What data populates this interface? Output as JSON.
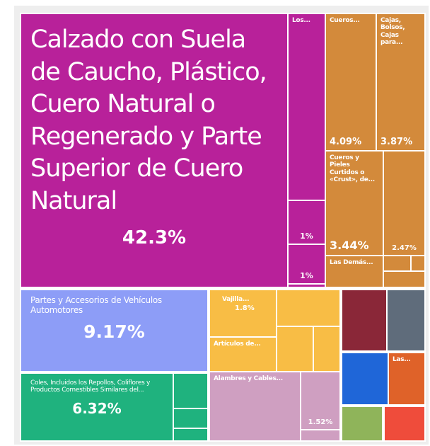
{
  "chart_data": {
    "type": "treemap",
    "names": [
      "Calzado con Suela de Caucho, Plástico, Cuero Natural o Regenerado y Parte Superior de Cuero Natural",
      "Los...",
      null,
      null,
      null,
      "Cueros...",
      "Cajas, Bolsos, Cajas para...",
      "Cueros y Pieles Curtidos o «Crust», de...",
      null,
      "Las Demás...",
      null,
      null,
      null,
      "Partes y Accesorios de Vehículos Automotores",
      "Coles, Incluidos los Repollos, Coliflores y Productos Comestibles Similares del...",
      null,
      null,
      null,
      "Vajilla...",
      "Artículos de...",
      null,
      null,
      null,
      "Alambres y Cables...",
      null,
      null,
      null,
      null,
      null,
      "Las...",
      null,
      null
    ],
    "values": [
      42.3,
      3.9,
      1,
      1,
      0.1,
      4.09,
      3.87,
      3.44,
      2.47,
      1.0,
      0.3,
      0.15,
      0.3,
      9.17,
      6.32,
      0.7,
      0.35,
      0.22,
      1.8,
      1.3,
      1.3,
      0.9,
      0.65,
      3.6,
      1.52,
      0.25,
      1.5,
      1.3,
      1.35,
      1.05,
      0.8,
      0.8
    ],
    "value_labels": [
      "42.3%",
      null,
      "1%",
      "1%",
      null,
      "4.09%",
      "3.87%",
      "3.44%",
      "2.47%",
      null,
      null,
      null,
      null,
      "9.17%",
      "6.32%",
      null,
      null,
      null,
      "1.8%",
      null,
      null,
      null,
      null,
      null,
      "1.52%",
      null,
      null,
      null,
      null,
      null,
      null,
      null
    ],
    "colors": [
      "#b8219a",
      "#b8219a",
      "#b8219a",
      "#b8219a",
      "#b8219a",
      "#d38a3b",
      "#d38a3b",
      "#d38a3b",
      "#d38a3b",
      "#d38a3b",
      "#d38a3b",
      "#d38a3b",
      "#d38a3b",
      "#8d9df7",
      "#1fb27e",
      "#1fb27e",
      "#1fb27e",
      "#1fb27e",
      "#f8bd45",
      "#f8bd45",
      "#f8bd45",
      "#f8bd45",
      "#f8bd45",
      "#cf9fc1",
      "#cf9fc1",
      "#cf9fc1",
      "#8a2738",
      "#5f6c7b",
      "#1f66d8",
      "#df6229",
      "#8fb45a",
      "#ef4c3b"
    ]
  }
}
